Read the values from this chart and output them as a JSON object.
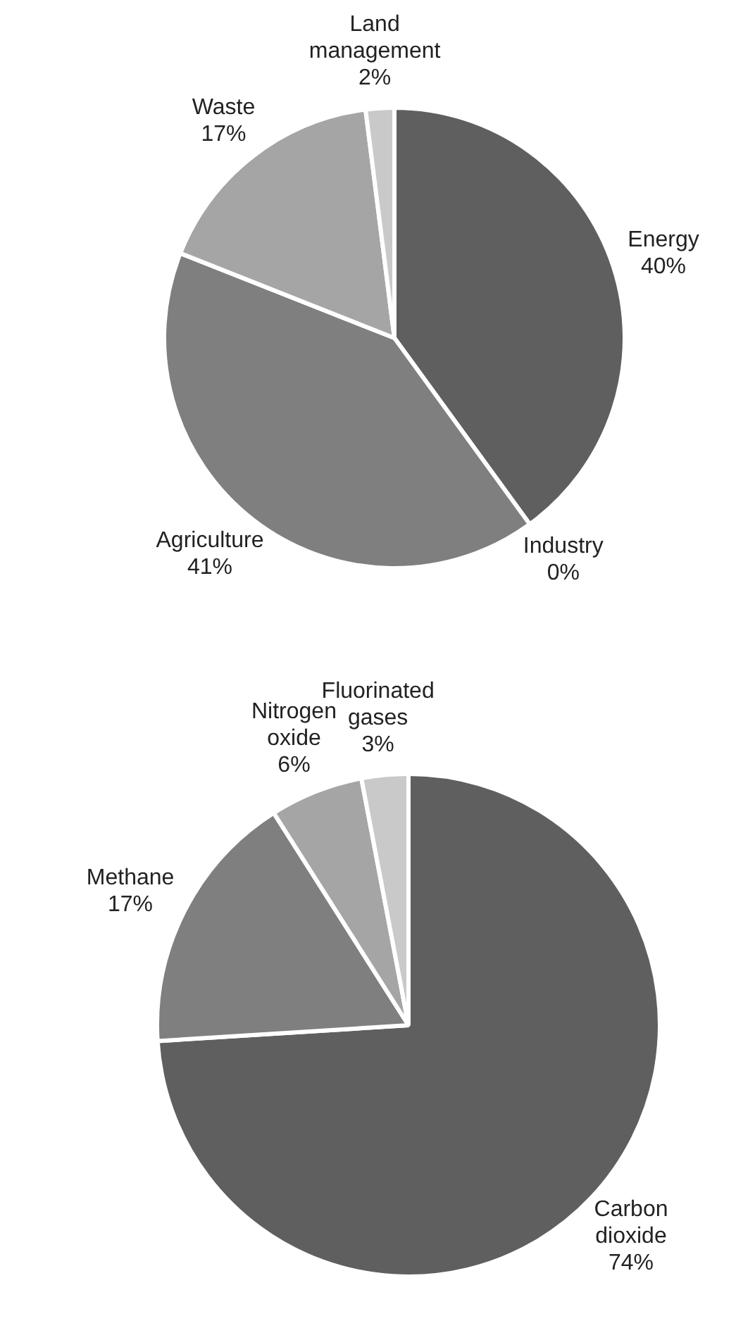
{
  "chart_data": [
    {
      "type": "pie",
      "categories": [
        "Energy",
        "Industry",
        "Agriculture",
        "Waste",
        "Land management"
      ],
      "values": [
        40,
        0,
        41,
        17,
        2
      ],
      "value_labels": [
        "40%",
        "0%",
        "41%",
        "17%",
        "2%"
      ],
      "colors": [
        "#5f5f5f",
        "#ffffff",
        "#7f7f7f",
        "#a5a5a5",
        "#c9c9c9"
      ]
    },
    {
      "type": "pie",
      "categories": [
        "Carbon dioxide",
        "Methane",
        "Nitrogen oxide",
        "Fluorinated gases"
      ],
      "values": [
        74,
        17,
        6,
        3
      ],
      "value_labels": [
        "74%",
        "17%",
        "6%",
        "3%"
      ],
      "colors": [
        "#5f5f5f",
        "#7f7f7f",
        "#a5a5a5",
        "#c9c9c9"
      ]
    }
  ]
}
